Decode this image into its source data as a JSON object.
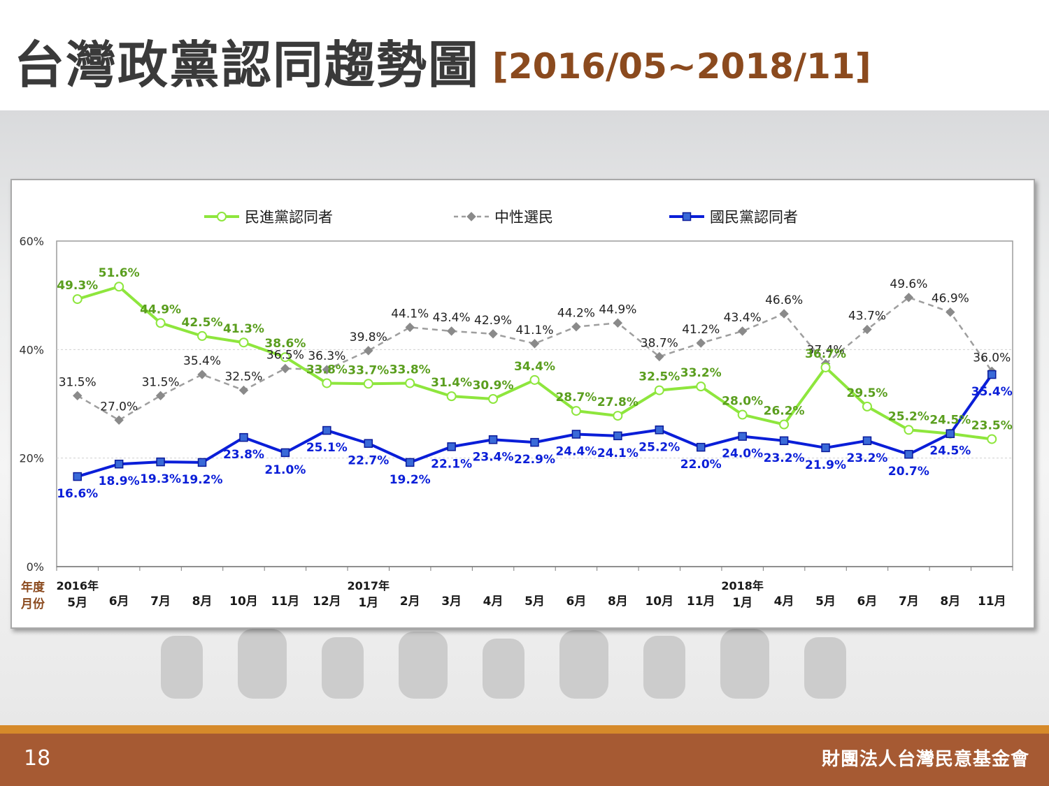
{
  "slide": {
    "title": "台灣政黨認同趨勢圖",
    "title_range": "[2016/05~2018/11]",
    "page_number": "18",
    "organization": "財團法人台灣民意基金會"
  },
  "colors": {
    "dpp": "#8ee63d",
    "dpp_label": "#5a9e1e",
    "neutral": "#9e9e9e",
    "kmt": "#0a1ed8",
    "axis_label_brown": "#8b4a1e"
  },
  "chart_data": {
    "type": "line",
    "categories": [
      "5月",
      "6月",
      "7月",
      "8月",
      "10月",
      "11月",
      "12月",
      "1月",
      "2月",
      "3月",
      "4月",
      "5月",
      "6月",
      "8月",
      "10月",
      "11月",
      "1月",
      "4月",
      "5月",
      "6月",
      "7月",
      "8月",
      "11月"
    ],
    "year_labels": [
      {
        "index": 0,
        "label": "2016年"
      },
      {
        "index": 7,
        "label": "2017年"
      },
      {
        "index": 16,
        "label": "2018年"
      }
    ],
    "row_labels": {
      "year": "年度",
      "month": "月份"
    },
    "ylim": [
      0,
      60
    ],
    "yticks": [
      0,
      20,
      40,
      60
    ],
    "ytick_labels": [
      "0%",
      "20%",
      "40%",
      "60%"
    ],
    "grid": true,
    "legend_position": "top",
    "series": [
      {
        "key": "dpp",
        "name": "民進黨認同者",
        "marker": "circle",
        "values": [
          49.3,
          51.6,
          44.9,
          42.5,
          41.3,
          38.6,
          33.8,
          33.7,
          33.8,
          31.4,
          30.9,
          34.4,
          28.7,
          27.8,
          32.5,
          33.2,
          28.0,
          26.2,
          36.7,
          29.5,
          25.2,
          24.5,
          23.5
        ],
        "labels": [
          "49.3%",
          "51.6%",
          "44.9%",
          "42.5%",
          "41.3%",
          "38.6%",
          "33.8%",
          "33.7%",
          "33.8%",
          "31.4%",
          "30.9%",
          "34.4%",
          "28.7%",
          "27.8%",
          "32.5%",
          "33.2%",
          "28.0%",
          "26.2%",
          "36.7%",
          "29.5%",
          "25.2%",
          "24.5%",
          "23.5%"
        ]
      },
      {
        "key": "neutral",
        "name": "中性選民",
        "marker": "diamond",
        "values": [
          31.5,
          27.0,
          31.5,
          35.4,
          32.5,
          36.5,
          36.3,
          39.8,
          44.1,
          43.4,
          42.9,
          41.1,
          44.2,
          44.9,
          38.7,
          41.2,
          43.4,
          46.6,
          37.4,
          43.7,
          49.6,
          46.9,
          36.0
        ],
        "labels": [
          "31.5%",
          "27.0%",
          "31.5%",
          "35.4%",
          "32.5%",
          "36.5%",
          "36.3%",
          "39.8%",
          "44.1%",
          "43.4%",
          "42.9%",
          "41.1%",
          "44.2%",
          "44.9%",
          "38.7%",
          "41.2%",
          "43.4%",
          "46.6%",
          "37.4%",
          "43.7%",
          "49.6%",
          "46.9%",
          "36.0%"
        ]
      },
      {
        "key": "kmt",
        "name": "國民黨認同者",
        "marker": "square",
        "values": [
          16.6,
          18.9,
          19.3,
          19.2,
          23.8,
          21.0,
          25.1,
          22.7,
          19.2,
          22.1,
          23.4,
          22.9,
          24.4,
          24.1,
          25.2,
          22.0,
          24.0,
          23.2,
          21.9,
          23.2,
          20.7,
          24.5,
          35.4
        ],
        "labels": [
          "16.6%",
          "18.9%",
          "19.3%",
          "19.2%",
          "23.8%",
          "21.0%",
          "25.1%",
          "22.7%",
          "19.2%",
          "22.1%",
          "23.4%",
          "22.9%",
          "24.4%",
          "24.1%",
          "25.2%",
          "22.0%",
          "24.0%",
          "23.2%",
          "21.9%",
          "23.2%",
          "20.7%",
          "24.5%",
          "35.4%"
        ]
      }
    ]
  }
}
